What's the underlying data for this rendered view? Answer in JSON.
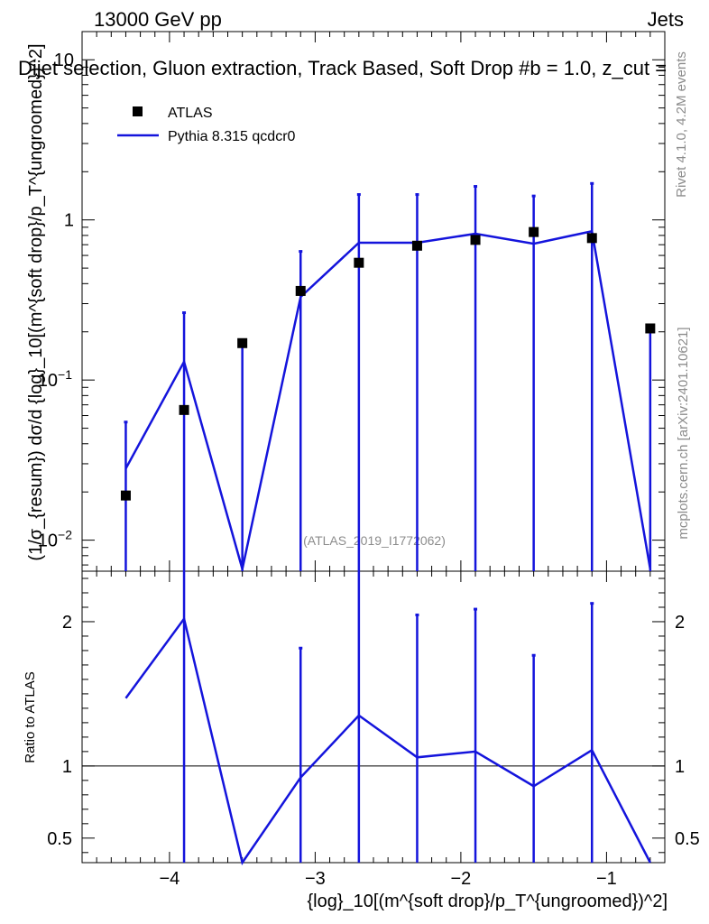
{
  "header": {
    "left": "13000 GeV pp",
    "right": "Jets",
    "title": "Dijet selection, Gluon extraction, Track Based, Soft Drop #b = 1.0, z_cut ="
  },
  "side_labels": {
    "rivet": "Rivet 4.1.0,  4.2M events",
    "source": "mcplots.cern.ch [arXiv:2401.10621]"
  },
  "watermark": "(ATLAS_2019_I1772062)",
  "legend": {
    "data_label": "ATLAS",
    "mc_label": "Pythia 8.315 qcdcr0"
  },
  "axes": {
    "upper_ylabel": "(1/σ_{resum}) dσ/d {log}_10[(m^{soft drop}/p_T^{ungroomed})^2]",
    "lower_ylabel": "Ratio to ATLAS",
    "xlabel": "{log}_10[(m^{soft drop}/p_T^{ungroomed})^2]"
  },
  "colors": {
    "data": "#000000",
    "mc": "#1414dc",
    "side_text": "#8c8c8c"
  },
  "chart_data": {
    "type": "scatter",
    "x_axis": {
      "range": [
        -4.6,
        -0.6
      ],
      "ticks": [
        -4,
        -3,
        -2,
        -1
      ],
      "tick_labels": [
        "−4",
        "−3",
        "−2",
        "−1"
      ]
    },
    "upper": {
      "yscale": "log",
      "ylim": [
        0.0064,
        15
      ],
      "ticks": [
        0.01,
        0.1,
        1,
        10
      ],
      "tick_labels": [
        "10^−2",
        "10^−1",
        "1",
        "10"
      ]
    },
    "lower": {
      "ylim": [
        0.33,
        2.35
      ],
      "ticks": [
        0.5,
        1,
        2
      ],
      "tick_labels": [
        "0.5",
        "1",
        "2"
      ],
      "reference_line": 1
    },
    "atlas": {
      "x": [
        -4.3,
        -3.9,
        -3.5,
        -3.1,
        -2.7,
        -2.3,
        -1.9,
        -1.5,
        -1.1,
        -0.7
      ],
      "y": [
        0.019,
        0.065,
        0.17,
        0.36,
        0.54,
        0.69,
        0.75,
        0.84,
        0.77,
        0.21
      ],
      "err_up": [
        0.055,
        0.265,
        0.17,
        0.64,
        1.45,
        1.45,
        1.63,
        1.42,
        1.7,
        0.21
      ]
    },
    "pythia": {
      "x": [
        -4.3,
        -3.9,
        -3.5,
        -3.1,
        -2.7,
        -2.3,
        -1.9,
        -1.5,
        -1.1,
        -0.7
      ],
      "y": [
        0.028,
        0.13,
        0.0066,
        0.33,
        0.72,
        0.72,
        0.82,
        0.71,
        0.85,
        0.0066
      ]
    },
    "ratio": {
      "x": [
        -4.3,
        -3.9,
        -3.5,
        -3.1,
        -2.7,
        -2.3,
        -1.9,
        -1.5,
        -1.1,
        -0.7
      ],
      "y": [
        1.47,
        2.02,
        0.3,
        0.92,
        1.35,
        1.06,
        1.1,
        0.86,
        1.11,
        0.3
      ],
      "err_up": [
        null,
        2.4,
        null,
        1.82,
        2.4,
        2.05,
        2.09,
        1.77,
        2.13,
        null
      ]
    },
    "legend_position": "top-left",
    "grid": false
  }
}
